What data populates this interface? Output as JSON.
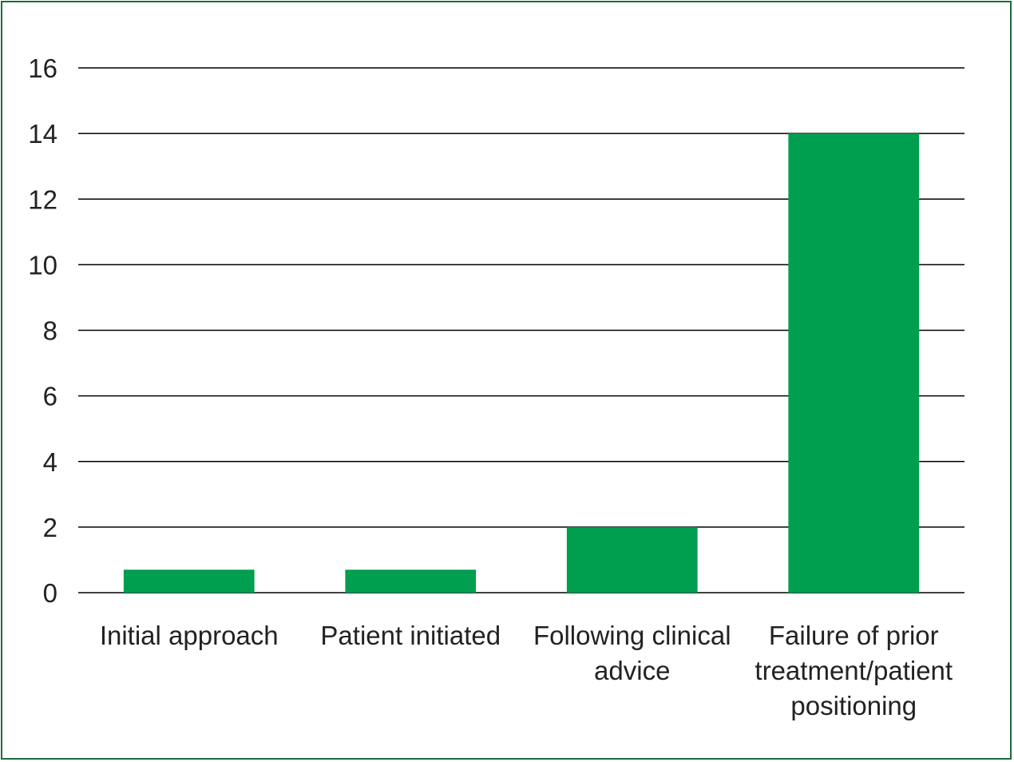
{
  "chart_data": {
    "type": "bar",
    "categories": [
      [
        "Initial approach"
      ],
      [
        "Patient initiated"
      ],
      [
        "Following clinical",
        "advice"
      ],
      [
        "Failure of prior",
        "treatment/patient",
        "positioning"
      ]
    ],
    "values": [
      0.7,
      0.7,
      2,
      14
    ],
    "ylim": [
      0,
      16
    ],
    "yticks": [
      0,
      2,
      4,
      6,
      8,
      10,
      12,
      14,
      16
    ],
    "grid": true,
    "title": "",
    "xlabel": "",
    "ylabel": "",
    "bar_color": "#009e4f",
    "grid_color": "#000000",
    "frame_color": "#1e6b3a"
  }
}
